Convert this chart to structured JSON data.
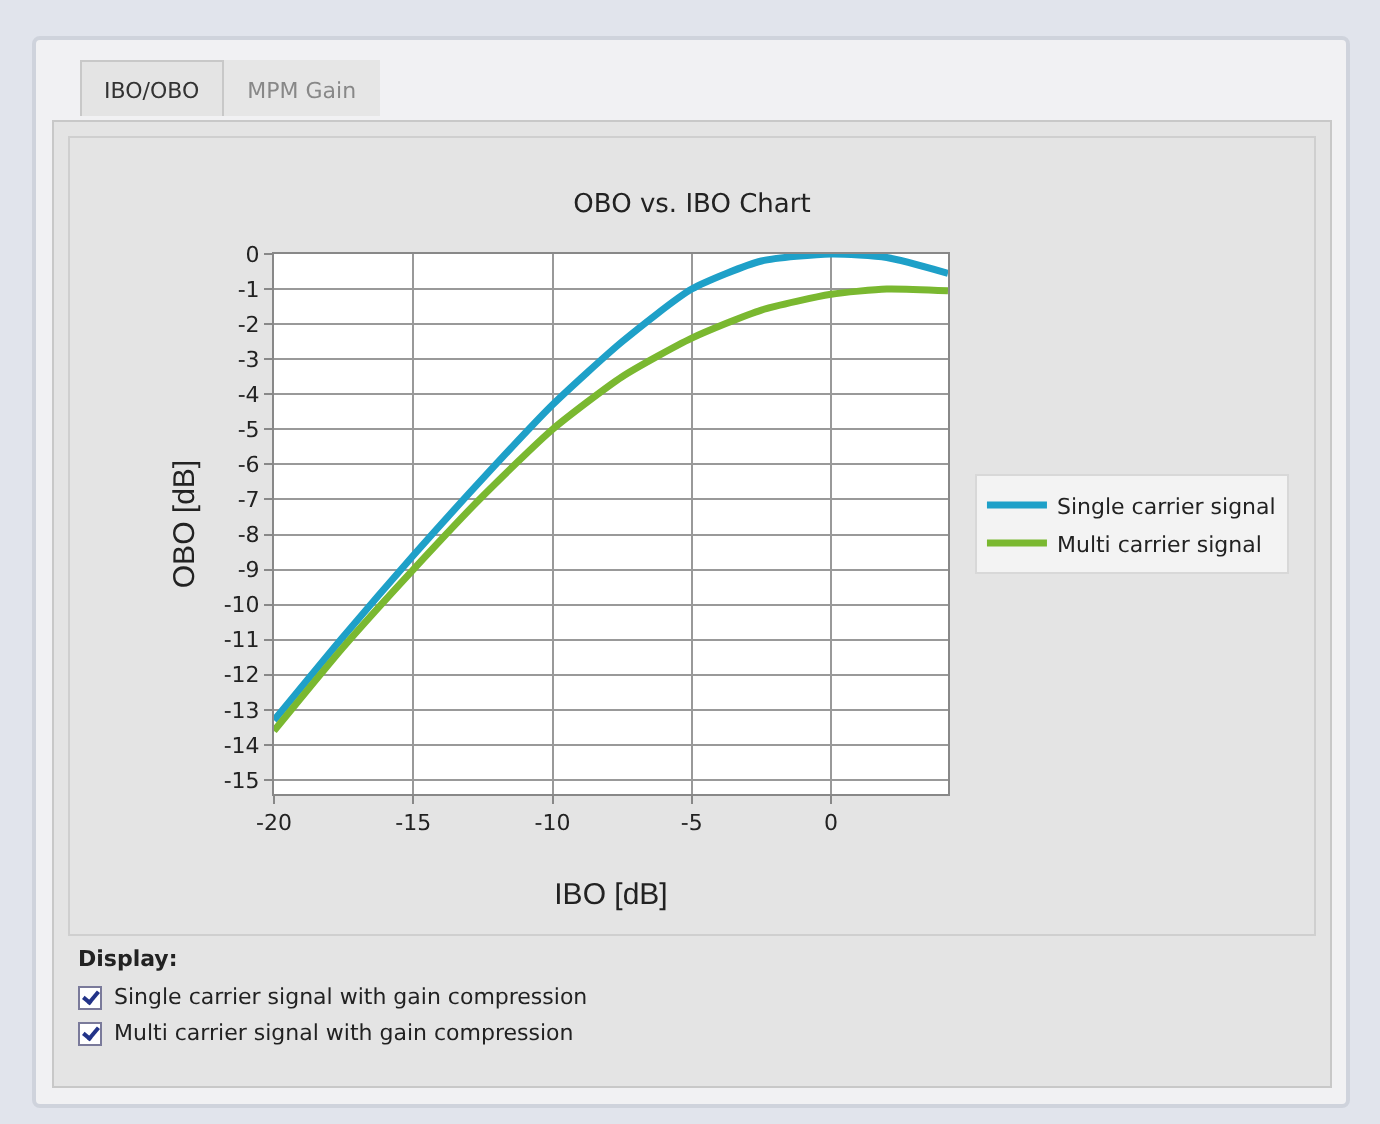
{
  "chart_data": {
    "type": "line",
    "title": "OBO vs. IBO Chart",
    "xlabel": "IBO [dB]",
    "ylabel": "OBO [dB]",
    "x": [
      -20,
      -17.5,
      -15,
      -12.5,
      -10,
      -7.5,
      -5,
      -2.5,
      0,
      2,
      4.2
    ],
    "series": [
      {
        "name": "Single carrier signal",
        "color": "#1ea0c8",
        "values": [
          -13.3,
          -10.9,
          -8.6,
          -6.4,
          -4.3,
          -2.5,
          -1.0,
          -0.2,
          0,
          -0.1,
          -0.55
        ]
      },
      {
        "name": "Multi carrier signal",
        "color": "#7ab830",
        "values": [
          -13.6,
          -11.2,
          -9.0,
          -6.9,
          -5.0,
          -3.5,
          -2.4,
          -1.6,
          -1.15,
          -1.0,
          -1.05
        ]
      }
    ],
    "xlim": [
      -20,
      4.2
    ],
    "xticks": [
      -20,
      -15,
      -10,
      -5,
      0
    ],
    "ylim": [
      -15.4,
      0
    ],
    "yticks": [
      0,
      -1,
      -2,
      -3,
      -4,
      -5,
      -6,
      -7,
      -8,
      -9,
      -10,
      -11,
      -12,
      -13,
      -14,
      -15
    ],
    "grid": true,
    "legend": "right",
    "marker": "none",
    "line_style": "solid",
    "annotations": [
      "IBO/OBO",
      "MPM Gain",
      "Display:",
      "Single carrier signal with gain compression",
      "Multi carrier signal with gain compression"
    ]
  }
}
